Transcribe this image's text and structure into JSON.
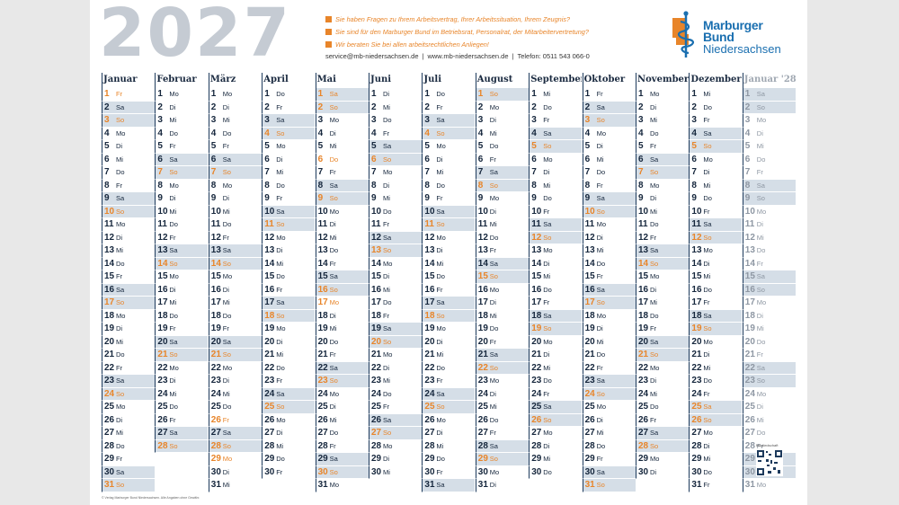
{
  "year": "2027",
  "info_lines": [
    "Sie haben Fragen zu Ihrem Arbeitsvertrag, Ihrer Arbeitssituation, Ihrem Zeugnis?",
    "Sie sind für den Marburger Bund im Betriebsrat, Personalrat, der Mitarbeitervertretung?",
    "Wir beraten Sie bei allen arbeitsrechtlichen Anliegen!"
  ],
  "contact": {
    "email": "service@mb-niedersachsen.de",
    "web": "www.mb-niedersachsen.de",
    "phone": "Telefon: 0511 543 066-0",
    "sep": "|"
  },
  "logo": {
    "line1": "Marburger",
    "line2": "Bund",
    "line3": "Niedersachsen"
  },
  "colors": {
    "accent": "#e8852a",
    "brand": "#1a6fb0",
    "weekend": "#d5dee7",
    "rule": "#1d3a5c"
  },
  "months": [
    {
      "name": "Januar",
      "days": 31,
      "start": 5
    },
    {
      "name": "Februar",
      "days": 28,
      "start": 1
    },
    {
      "name": "März",
      "days": 31,
      "start": 1
    },
    {
      "name": "April",
      "days": 30,
      "start": 4
    },
    {
      "name": "Mai",
      "days": 31,
      "start": 6
    },
    {
      "name": "Juni",
      "days": 30,
      "start": 2
    },
    {
      "name": "Juli",
      "days": 31,
      "start": 4
    },
    {
      "name": "August",
      "days": 31,
      "start": 0
    },
    {
      "name": "September",
      "days": 30,
      "start": 3
    },
    {
      "name": "Oktober",
      "days": 31,
      "start": 5
    },
    {
      "name": "November",
      "days": 30,
      "start": 1
    },
    {
      "name": "Dezember",
      "days": 31,
      "start": 3
    },
    {
      "name": "Januar '28",
      "days": 31,
      "start": 6,
      "next": true
    }
  ],
  "weekdays": [
    "So",
    "Mo",
    "Di",
    "Mi",
    "Do",
    "Fr",
    "Sa"
  ],
  "holidays": [
    [
      0,
      1
    ],
    [
      2,
      26
    ],
    [
      2,
      28
    ],
    [
      2,
      29
    ],
    [
      4,
      1
    ],
    [
      4,
      6
    ],
    [
      4,
      16
    ],
    [
      4,
      17
    ],
    [
      9,
      3
    ],
    [
      9,
      31
    ],
    [
      11,
      25
    ],
    [
      11,
      26
    ],
    [
      12,
      1
    ]
  ],
  "qr_label": "Mitgliedschaft",
  "copyright": "© Verlag Marburger Bund Niedersachsen. Alle Angaben ohne Gewähr."
}
